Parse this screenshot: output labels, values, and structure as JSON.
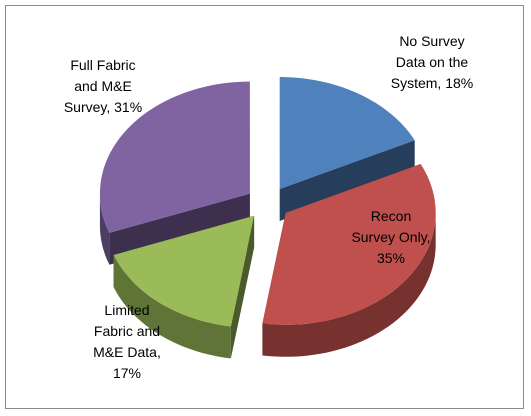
{
  "chart_data": {
    "type": "pie",
    "title": "",
    "style": "3d-exploded",
    "slices": [
      {
        "label_lines": [
          "No Survey",
          "Data on the",
          "System, 18%"
        ],
        "name": "No Survey Data on the System",
        "value": 18,
        "color": "#4f81bd"
      },
      {
        "label_lines": [
          "Recon",
          "Survey Only,",
          "35%"
        ],
        "name": "Recon Survey Only",
        "value": 35,
        "color": "#c0504d"
      },
      {
        "label_lines": [
          "Limited",
          "Fabric and",
          "M&E Data,",
          "17%"
        ],
        "name": "Limited Fabric and M&E Data",
        "value": 17,
        "color": "#9bbb59"
      },
      {
        "label_lines": [
          "Full Fabric",
          "and M&E",
          "Survey, 31%"
        ],
        "name": "Full Fabric and M&E Survey",
        "value": 31,
        "color": "#8064a2"
      }
    ],
    "legend": "none"
  }
}
